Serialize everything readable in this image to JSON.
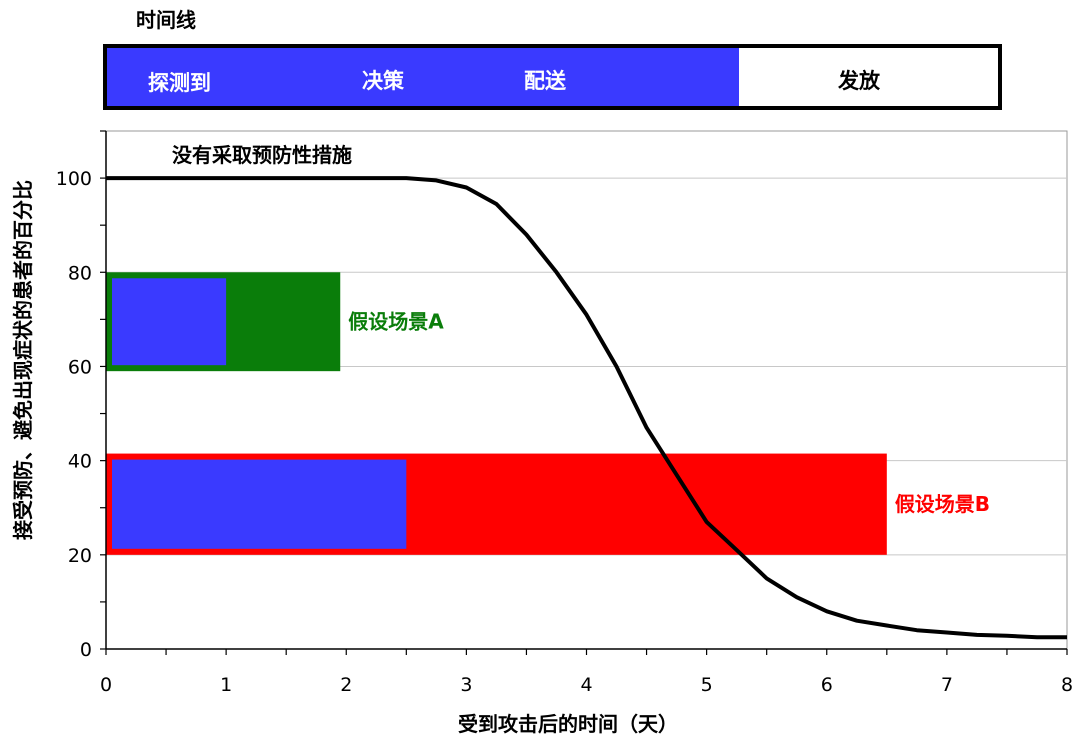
{
  "timeline": {
    "title": "时间线",
    "phases": [
      {
        "label": "探测到",
        "color": "#3a3aff"
      },
      {
        "label": "决策",
        "color": "#3a3aff"
      },
      {
        "label": "配送",
        "color": "#3a3aff"
      },
      {
        "label": "发放",
        "color": "#ffffff"
      }
    ]
  },
  "chart_data": {
    "type": "line",
    "xlabel": "受到攻击后的时间（天）",
    "ylabel": "接受预防、避免出现症状的患者的百分比",
    "xlim": [
      0,
      8
    ],
    "ylim": [
      0,
      110
    ],
    "x_ticks": [
      0,
      1,
      2,
      3,
      4,
      5,
      6,
      7,
      8
    ],
    "y_ticks": [
      0,
      20,
      40,
      60,
      80,
      100
    ],
    "grid": "horizontal",
    "series": [
      {
        "name": "没有采取预防性措施",
        "color": "#000000",
        "x": [
          0,
          1,
          2,
          2.5,
          2.75,
          3,
          3.25,
          3.5,
          3.75,
          4,
          4.25,
          4.5,
          4.75,
          5,
          5.25,
          5.5,
          5.75,
          6,
          6.25,
          6.5,
          6.75,
          7,
          7.25,
          7.5,
          7.75,
          8
        ],
        "y": [
          100,
          100,
          100,
          100,
          99.5,
          98,
          94.5,
          88,
          80,
          71,
          60,
          47,
          37,
          27,
          21,
          15,
          11,
          8,
          6,
          5,
          4,
          3.5,
          3,
          2.8,
          2.5,
          2.5
        ]
      }
    ],
    "scenarios": [
      {
        "name": "假设场景A",
        "x_start": 0,
        "x_end": 1.95,
        "y_low": 59,
        "y_high": 80,
        "color": "#0a7d0a",
        "inner_x_end": 1.0,
        "inner_color": "#3a3aff"
      },
      {
        "name": "假设场景B",
        "x_start": 0,
        "x_end": 6.5,
        "y_low": 20,
        "y_high": 41.5,
        "color": "#ff0000",
        "inner_x_end": 2.5,
        "inner_color": "#3a3aff"
      }
    ]
  }
}
